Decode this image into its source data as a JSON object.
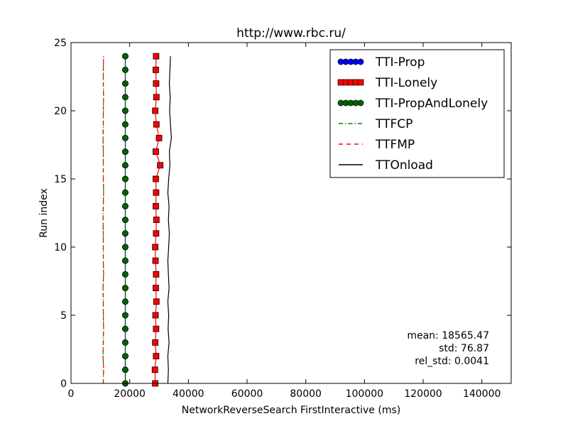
{
  "chart_data": {
    "type": "line",
    "title": "http://www.rbc.ru/",
    "xlabel": "NetworkReverseSearch FirstInteractive (ms)",
    "ylabel": "Run index",
    "xlim": [
      0,
      150000
    ],
    "ylim": [
      0,
      25
    ],
    "xticks": [
      0,
      20000,
      40000,
      60000,
      80000,
      100000,
      120000,
      140000
    ],
    "xtick_labels": [
      "0",
      "20000",
      "40000",
      "60000",
      "80000",
      "100000",
      "120000",
      "140000"
    ],
    "yticks": [
      0,
      5,
      10,
      15,
      20,
      25
    ],
    "ytick_labels": [
      "0",
      "5",
      "10",
      "15",
      "20",
      "25"
    ],
    "grid": false,
    "legend_position": "top-right",
    "series": [
      {
        "name": "TTI-Prop",
        "color": "#0000ff",
        "style": "solid",
        "marker": "circle",
        "y": [
          0,
          1,
          2,
          3,
          4,
          5,
          6,
          7,
          8,
          9,
          10,
          11,
          12,
          13,
          14,
          15,
          16,
          17,
          18,
          19,
          20,
          21,
          22,
          23,
          24
        ],
        "x": [
          18500,
          18500,
          18500,
          18500,
          18500,
          18500,
          18500,
          18500,
          18500,
          18500,
          18500,
          18500,
          18500,
          18500,
          18500,
          18500,
          18500,
          18500,
          18500,
          18500,
          18500,
          18500,
          18500,
          18500,
          18500
        ]
      },
      {
        "name": "TTI-Lonely",
        "color": "#ff0000",
        "style": "solid",
        "marker": "square",
        "y": [
          0,
          1,
          2,
          3,
          4,
          5,
          6,
          7,
          8,
          9,
          10,
          11,
          12,
          13,
          14,
          15,
          16,
          17,
          18,
          19,
          20,
          21,
          22,
          23,
          24
        ],
        "x": [
          28700,
          28600,
          29000,
          28700,
          29000,
          28800,
          29100,
          28900,
          29000,
          28800,
          28700,
          29000,
          29100,
          28900,
          29000,
          28900,
          30400,
          28900,
          30000,
          29100,
          28700,
          29100,
          29000,
          28900,
          29000
        ]
      },
      {
        "name": "TTI-PropAndLonely",
        "color": "#006400",
        "style": "solid",
        "marker": "circle",
        "y": [
          0,
          1,
          2,
          3,
          4,
          5,
          6,
          7,
          8,
          9,
          10,
          11,
          12,
          13,
          14,
          15,
          16,
          17,
          18,
          19,
          20,
          21,
          22,
          23,
          24
        ],
        "x": [
          18500,
          18500,
          18500,
          18500,
          18500,
          18500,
          18500,
          18500,
          18500,
          18500,
          18500,
          18500,
          18500,
          18500,
          18500,
          18500,
          18500,
          18500,
          18500,
          18500,
          18500,
          18500,
          18500,
          18500,
          18500
        ]
      },
      {
        "name": "TTFCP",
        "color": "#008000",
        "style": "dashdot",
        "marker": "none",
        "y": [
          0,
          1,
          2,
          3,
          4,
          5,
          6,
          7,
          8,
          9,
          10,
          11,
          12,
          13,
          14,
          15,
          16,
          17,
          18,
          19,
          20,
          21,
          22,
          23,
          24
        ],
        "x": [
          11000,
          11100,
          10900,
          11000,
          11100,
          11000,
          11000,
          10900,
          11100,
          11000,
          11000,
          11000,
          10900,
          11000,
          11100,
          11000,
          11000,
          11000,
          10900,
          11000,
          11000,
          11100,
          11000,
          11000,
          11100
        ]
      },
      {
        "name": "TTFMP",
        "color": "#ff0000",
        "style": "dashed",
        "marker": "none",
        "y": [
          0,
          1,
          2,
          3,
          4,
          5,
          6,
          7,
          8,
          9,
          10,
          11,
          12,
          13,
          14,
          15,
          16,
          17,
          18,
          19,
          20,
          21,
          22,
          23,
          24
        ],
        "x": [
          11000,
          11100,
          10900,
          11000,
          11100,
          11000,
          11000,
          10900,
          11100,
          11000,
          11000,
          11000,
          10900,
          11000,
          11100,
          11000,
          11000,
          11000,
          10900,
          11000,
          11000,
          11100,
          11000,
          11000,
          11100
        ]
      },
      {
        "name": "TTOnload",
        "color": "#000000",
        "style": "solid",
        "marker": "none",
        "y": [
          0,
          1,
          2,
          3,
          4,
          5,
          6,
          7,
          8,
          9,
          10,
          11,
          12,
          13,
          14,
          15,
          16,
          17,
          18,
          19,
          20,
          21,
          22,
          23,
          24
        ],
        "x": [
          33000,
          33200,
          33000,
          33400,
          33100,
          33300,
          33000,
          33400,
          33200,
          33000,
          33300,
          33500,
          33200,
          33400,
          33000,
          33300,
          33700,
          33500,
          34200,
          33900,
          33600,
          33800,
          33500,
          33700,
          33900
        ]
      }
    ],
    "annotations": [
      "mean: 18565.47",
      "std: 76.87",
      "rel_std: 0.0041"
    ]
  }
}
